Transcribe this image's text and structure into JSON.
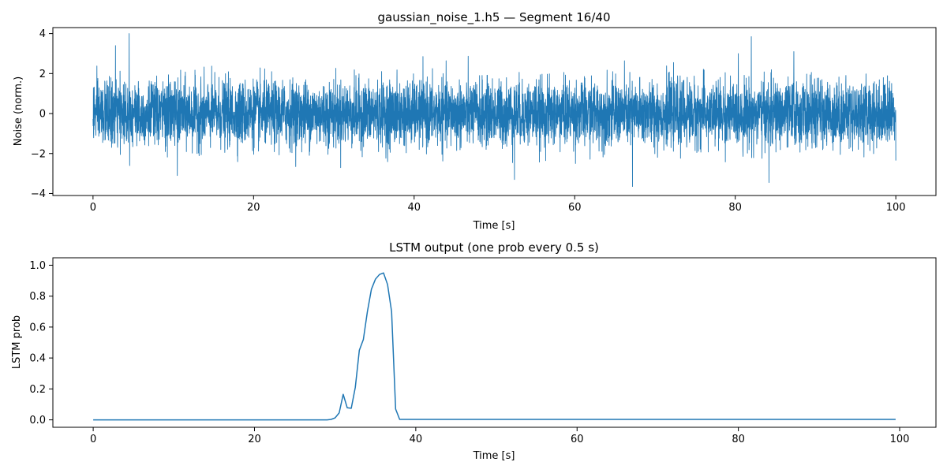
{
  "chart_data": [
    {
      "type": "line",
      "title": "gaussian_noise_1.h5 — Segment 16/40",
      "xlabel": "Time [s]",
      "ylabel": "Noise (norm.)",
      "xlim": [
        -5,
        105
      ],
      "ylim": [
        -4.1,
        4.3
      ],
      "xticks": [
        0,
        20,
        40,
        60,
        80,
        100
      ],
      "xtick_labels": [
        "0",
        "20",
        "40",
        "60",
        "80",
        "100"
      ],
      "yticks": [
        -4,
        -2,
        0,
        2,
        4
      ],
      "ytick_labels": [
        "−4",
        "−2",
        "0",
        "2",
        "4"
      ],
      "grid": false,
      "color": "#1f77b4",
      "series": [
        {
          "description_of_signal": "dense gaussian noise, mean 0, std about 0.8, sampled from t=0 to t=100 s",
          "x_start": 0,
          "x_end": 100,
          "mean": 0,
          "std": 0.8,
          "peaks": [
            {
              "x": 4.5,
              "y": 4.0
            },
            {
              "x": 2.8,
              "y": 3.4
            },
            {
              "x": 82.0,
              "y": 3.85
            },
            {
              "x": 67.2,
              "y": -3.65
            },
            {
              "x": 84.2,
              "y": -3.45
            },
            {
              "x": 52.5,
              "y": -3.3
            },
            {
              "x": 10.5,
              "y": -3.1
            },
            {
              "x": 87.3,
              "y": 3.1
            }
          ]
        }
      ]
    },
    {
      "type": "line",
      "title": "LSTM output (one prob every 0.5 s)",
      "xlabel": "Time [s]",
      "ylabel": "LSTM prob",
      "xlim": [
        -5,
        104.5
      ],
      "ylim": [
        -0.048,
        1.048
      ],
      "xticks": [
        0,
        20,
        40,
        60,
        80,
        100
      ],
      "xtick_labels": [
        "0",
        "20",
        "40",
        "60",
        "80",
        "100"
      ],
      "yticks": [
        0.0,
        0.2,
        0.4,
        0.6,
        0.8,
        1.0
      ],
      "ytick_labels": [
        "0.0",
        "0.2",
        "0.4",
        "0.6",
        "0.8",
        "1.0"
      ],
      "grid": false,
      "color": "#1f77b4",
      "series": [
        {
          "x": [
            0,
            29.0,
            29.5,
            30.0,
            30.5,
            31.0,
            31.5,
            32.0,
            32.5,
            33.0,
            33.5,
            34.0,
            34.5,
            35.0,
            35.5,
            36.0,
            36.5,
            37.0,
            37.5,
            38.0,
            99.5
          ],
          "y": [
            0,
            0,
            0.003,
            0.013,
            0.045,
            0.165,
            0.078,
            0.075,
            0.21,
            0.45,
            0.52,
            0.7,
            0.845,
            0.91,
            0.94,
            0.95,
            0.875,
            0.7,
            0.07,
            0.003,
            0.003
          ]
        }
      ]
    }
  ]
}
